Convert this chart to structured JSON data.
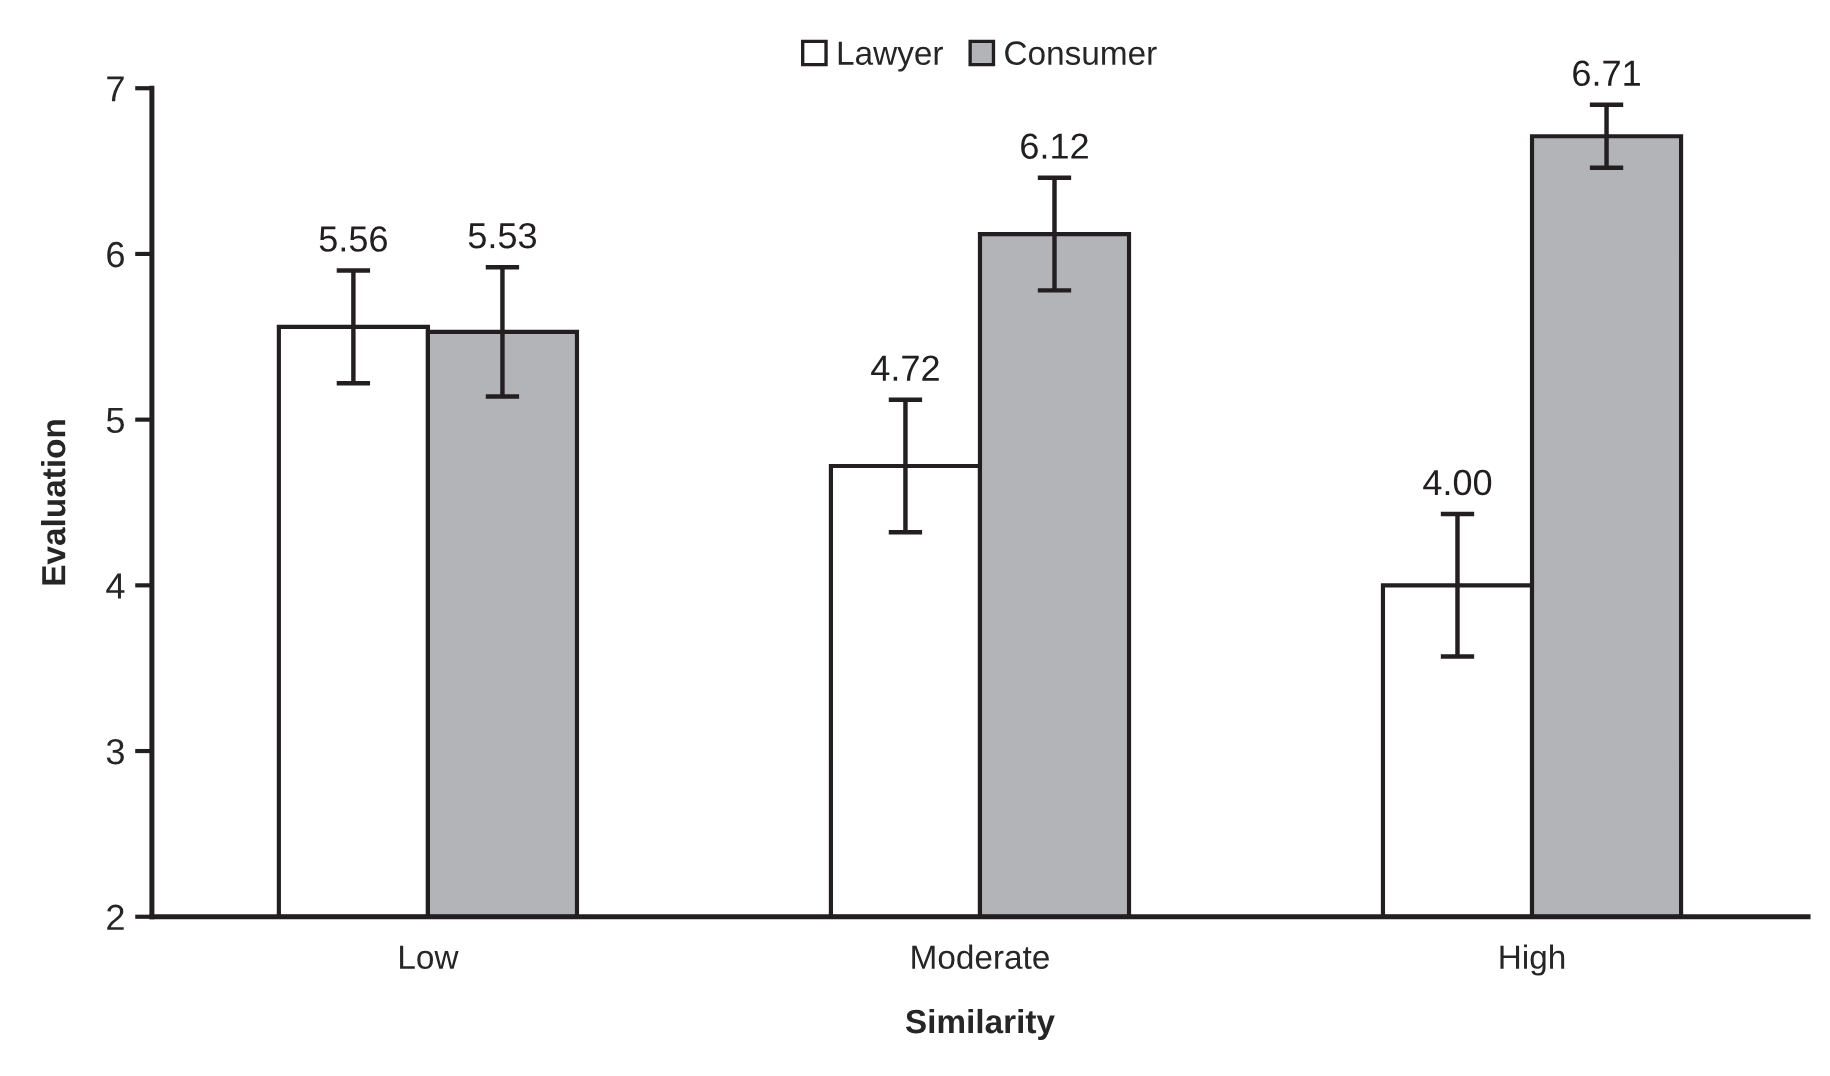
{
  "chart_data": {
    "type": "bar",
    "xlabel": "Similarity",
    "ylabel": "Evaluation",
    "categories": [
      "Low",
      "Moderate",
      "High"
    ],
    "series": [
      {
        "name": "Lawyer",
        "color": "#ffffff",
        "values": [
          5.56,
          4.72,
          4.0
        ],
        "errors": [
          0.34,
          0.4,
          0.43
        ],
        "value_labels": [
          "5.56",
          "4.72",
          "4.00"
        ]
      },
      {
        "name": "Consumer",
        "color": "#b3b4b7",
        "values": [
          5.53,
          6.12,
          6.71
        ],
        "errors": [
          0.39,
          0.34,
          0.19
        ],
        "value_labels": [
          "5.53",
          "6.12",
          "6.71"
        ]
      }
    ],
    "ylim": [
      2,
      7
    ],
    "yticks": [
      2,
      3,
      4,
      5,
      6,
      7
    ],
    "grid": false,
    "legend": "top"
  }
}
